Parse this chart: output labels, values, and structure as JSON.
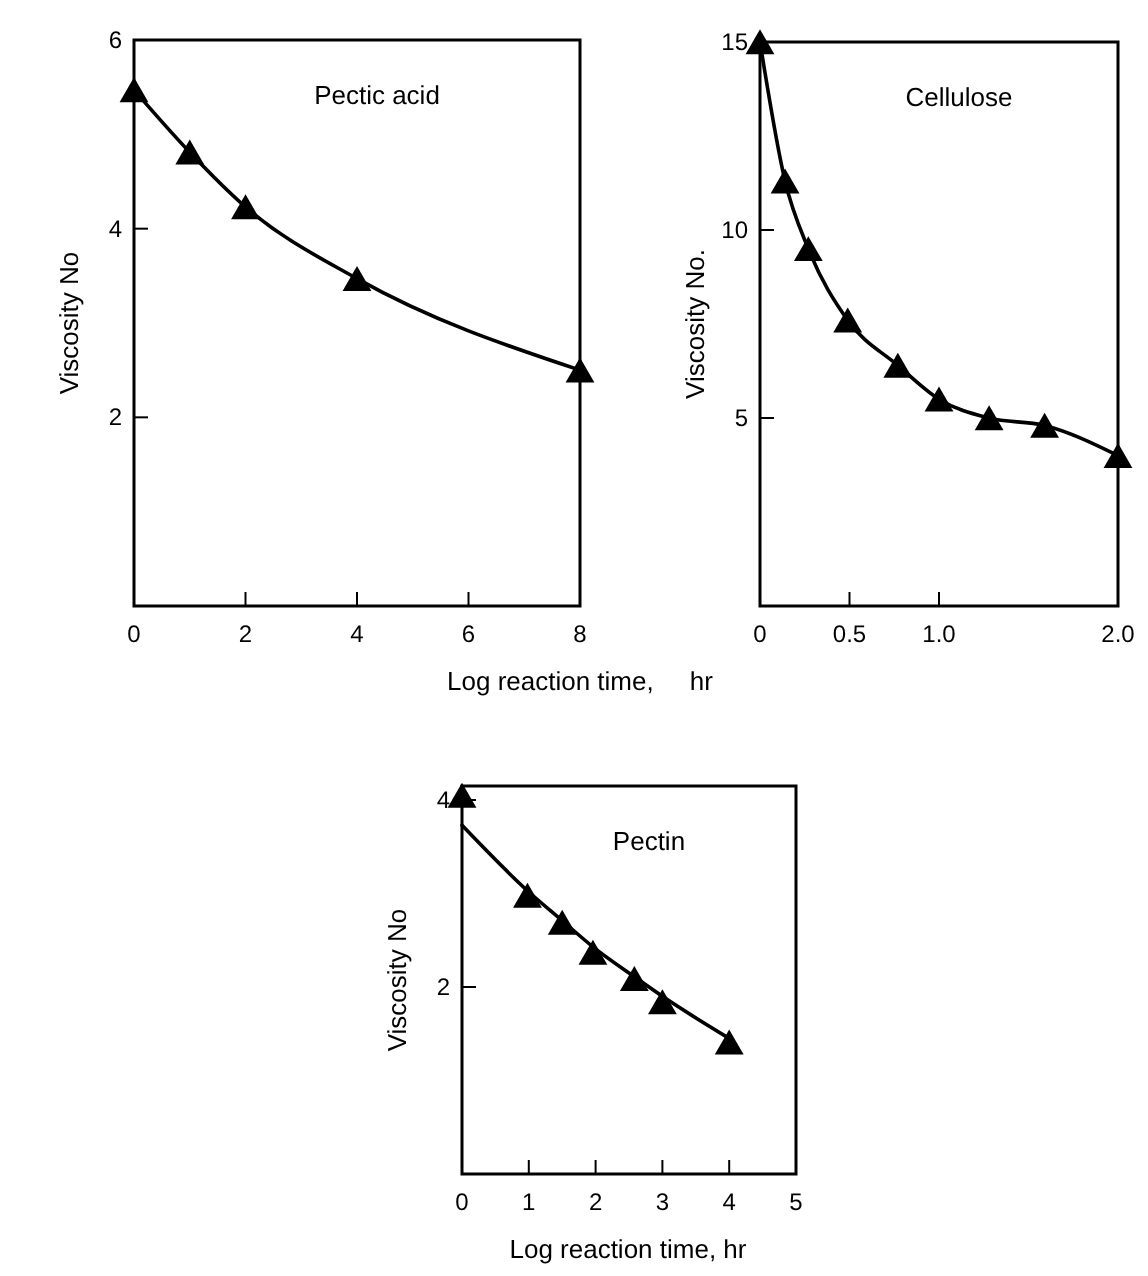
{
  "chart_data": [
    {
      "type": "line",
      "title": "Pectic acid",
      "ylabel": "Viscosity No",
      "xlabel": "Log reaction time,     hr",
      "xlim": [
        0,
        8
      ],
      "ylim": [
        0,
        6
      ],
      "marker": "triangle",
      "grid": false,
      "xticks": [
        0,
        2,
        4,
        6,
        8
      ],
      "yticks": [
        2,
        4,
        6
      ],
      "series": [
        {
          "color": "#000000",
          "x": [
            0,
            1,
            2,
            4,
            8
          ],
          "values": [
            5.47,
            4.81,
            4.23,
            3.47,
            2.5
          ]
        }
      ]
    },
    {
      "type": "line",
      "title": "Cellulose",
      "ylabel": "Viscosity No.",
      "xlim": [
        0,
        2
      ],
      "ylim": [
        0,
        15
      ],
      "marker": "triangle",
      "grid": false,
      "xticks": [
        0,
        0.5,
        {
          "value": 1,
          "label": "1.0"
        },
        {
          "value": 2,
          "label": "2.0"
        }
      ],
      "yticks": [
        5,
        10,
        15
      ],
      "series": [
        {
          "color": "#000000",
          "x": [
            0,
            0.14,
            0.27,
            0.49,
            0.77,
            1.0,
            1.28,
            1.59,
            2.0
          ],
          "values": [
            15,
            11.3,
            9.5,
            7.6,
            6.4,
            5.5,
            5.0,
            4.8,
            4.0
          ]
        }
      ]
    },
    {
      "type": "scatter",
      "title": "Pectin",
      "ylabel": "Viscosity No",
      "xlabel": "Log reaction time, hr",
      "xlim": [
        0,
        5
      ],
      "ylim": [
        0,
        4.15
      ],
      "marker": "triangle",
      "grid": false,
      "xticks": [
        0,
        1,
        2,
        3,
        4,
        5
      ],
      "yticks": [
        2,
        4
      ],
      "series": [
        {
          "color": "#000000",
          "x": [
            0,
            0.98,
            1.5,
            1.96,
            2.58,
            3.0,
            4.0
          ],
          "values": [
            4.05,
            2.98,
            2.69,
            2.37,
            2.09,
            1.84,
            1.41
          ]
        },
        {
          "type": "line",
          "color": "#000000",
          "marker": "none",
          "x": [
            0,
            0.98,
            1.5,
            1.96,
            2.58,
            3.0,
            4.0
          ],
          "values": [
            3.73,
            3.03,
            2.71,
            2.43,
            2.11,
            1.9,
            1.45
          ]
        }
      ]
    }
  ]
}
